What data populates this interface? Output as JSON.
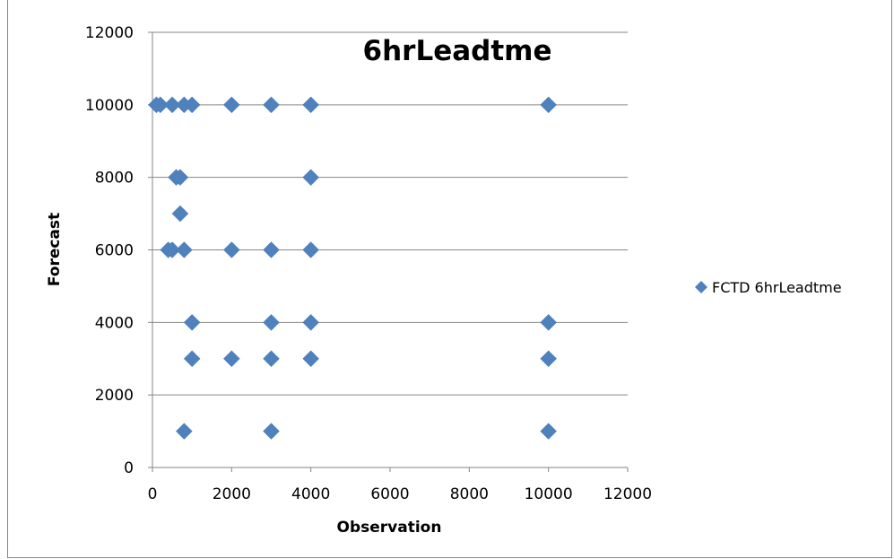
{
  "chart_data": {
    "type": "scatter",
    "title": "6hrLeadtme",
    "xlabel": "Observation",
    "ylabel": "Forecast",
    "xlim": [
      0,
      12000
    ],
    "ylim": [
      0,
      12000
    ],
    "xticks": [
      0,
      2000,
      4000,
      6000,
      8000,
      10000,
      12000
    ],
    "yticks": [
      0,
      2000,
      4000,
      6000,
      8000,
      10000,
      12000
    ],
    "grid": "horizontal major gridlines",
    "legend_position": "right",
    "series": [
      {
        "name": "FCTD 6hrLeadtme",
        "color": "#4F81BD",
        "marker": "diamond",
        "points": [
          {
            "x": 100,
            "y": 10000
          },
          {
            "x": 200,
            "y": 10000
          },
          {
            "x": 500,
            "y": 10000
          },
          {
            "x": 800,
            "y": 10000
          },
          {
            "x": 1000,
            "y": 10000
          },
          {
            "x": 2000,
            "y": 10000
          },
          {
            "x": 3000,
            "y": 10000
          },
          {
            "x": 4000,
            "y": 10000
          },
          {
            "x": 10000,
            "y": 10000
          },
          {
            "x": 600,
            "y": 8000
          },
          {
            "x": 700,
            "y": 8000
          },
          {
            "x": 4000,
            "y": 8000
          },
          {
            "x": 700,
            "y": 7000
          },
          {
            "x": 400,
            "y": 6000
          },
          {
            "x": 500,
            "y": 6000
          },
          {
            "x": 800,
            "y": 6000
          },
          {
            "x": 2000,
            "y": 6000
          },
          {
            "x": 3000,
            "y": 6000
          },
          {
            "x": 4000,
            "y": 6000
          },
          {
            "x": 1000,
            "y": 4000
          },
          {
            "x": 3000,
            "y": 4000
          },
          {
            "x": 4000,
            "y": 4000
          },
          {
            "x": 10000,
            "y": 4000
          },
          {
            "x": 1000,
            "y": 3000
          },
          {
            "x": 2000,
            "y": 3000
          },
          {
            "x": 3000,
            "y": 3000
          },
          {
            "x": 4000,
            "y": 3000
          },
          {
            "x": 10000,
            "y": 3000
          },
          {
            "x": 800,
            "y": 1000
          },
          {
            "x": 3000,
            "y": 1000
          },
          {
            "x": 10000,
            "y": 1000
          }
        ]
      }
    ]
  }
}
